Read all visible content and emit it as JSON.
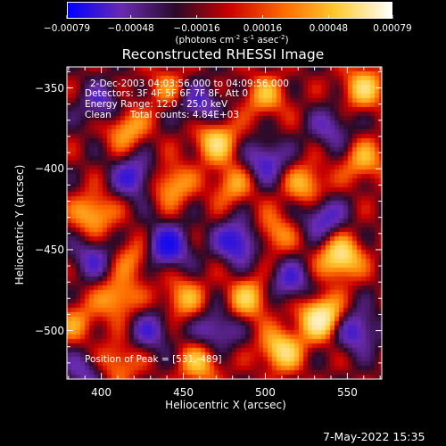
{
  "colorbar": {
    "tick_labels": [
      "-0.00079",
      "-0.00048",
      "-0.00016",
      "0.00016",
      "0.00048",
      "0.00079"
    ],
    "tick_values": [
      -0.00079,
      -0.00048,
      -0.00016,
      0.00016,
      0.00048,
      0.00079
    ],
    "units": {
      "pre": "(photons cm",
      "e1": "-2",
      "mid": " s",
      "e2": "-1",
      "mid2": " asec",
      "e3": "-2",
      "post": ")"
    },
    "colors": [
      "#0000ff",
      "#6a2bb0",
      "#2a0a2a",
      "#cc0000",
      "#ff6a00",
      "#ffcc33",
      "#ffffff"
    ]
  },
  "chart_data": {
    "type": "heatmap",
    "title": "Reconstructed RHESSI Image",
    "xlabel": "Heliocentric X (arcsec)",
    "ylabel": "Heliocentric Y (arcsec)",
    "xlim": [
      379,
      571
    ],
    "ylim": [
      -530,
      -337
    ],
    "x_ticks": [
      400,
      450,
      500,
      550
    ],
    "y_ticks": [
      -350,
      -400,
      -450,
      -500
    ],
    "x_tick_labels": [
      "400",
      "450",
      "500",
      "550"
    ],
    "y_tick_labels": [
      "-350",
      "-400",
      "-450",
      "-500"
    ],
    "vmin": -0.00079,
    "vmax": 0.00079,
    "peak": {
      "x": 531,
      "y": -489
    },
    "blobs": [
      {
        "x": 534,
        "y": -492,
        "v": 1.0
      },
      {
        "x": 546,
        "y": -455,
        "v": 0.85
      },
      {
        "x": 510,
        "y": -512,
        "v": 0.75
      },
      {
        "x": 470,
        "y": -383,
        "v": 0.7
      },
      {
        "x": 415,
        "y": -375,
        "v": 0.55
      },
      {
        "x": 395,
        "y": -428,
        "v": 0.6
      },
      {
        "x": 443,
        "y": -410,
        "v": 0.55
      },
      {
        "x": 480,
        "y": -410,
        "v": 0.45
      },
      {
        "x": 525,
        "y": -410,
        "v": 0.55
      },
      {
        "x": 560,
        "y": -395,
        "v": 0.5
      },
      {
        "x": 560,
        "y": -350,
        "v": 0.65
      },
      {
        "x": 500,
        "y": -355,
        "v": 0.5
      },
      {
        "x": 410,
        "y": -480,
        "v": 0.55
      },
      {
        "x": 450,
        "y": -480,
        "v": 0.5
      },
      {
        "x": 490,
        "y": -480,
        "v": 0.6
      },
      {
        "x": 410,
        "y": -520,
        "v": 0.45
      },
      {
        "x": 460,
        "y": -520,
        "v": 0.55
      },
      {
        "x": 420,
        "y": -455,
        "v": 0.4
      },
      {
        "x": 505,
        "y": -440,
        "v": 0.45
      },
      {
        "x": 385,
        "y": -495,
        "v": 0.4
      },
      {
        "x": 440,
        "y": -350,
        "v": 0.35
      },
      {
        "x": 440,
        "y": -448,
        "v": -0.8
      },
      {
        "x": 483,
        "y": -445,
        "v": -0.75
      },
      {
        "x": 420,
        "y": -405,
        "v": -0.6
      },
      {
        "x": 500,
        "y": -395,
        "v": -0.55
      },
      {
        "x": 535,
        "y": -430,
        "v": -0.55
      },
      {
        "x": 555,
        "y": -500,
        "v": -0.6
      },
      {
        "x": 470,
        "y": -500,
        "v": -0.5
      },
      {
        "x": 395,
        "y": -455,
        "v": -0.45
      },
      {
        "x": 460,
        "y": -360,
        "v": -0.5
      },
      {
        "x": 515,
        "y": -470,
        "v": -0.5
      },
      {
        "x": 400,
        "y": -360,
        "v": -0.45
      },
      {
        "x": 540,
        "y": -375,
        "v": -0.4
      },
      {
        "x": 430,
        "y": -500,
        "v": -0.45
      },
      {
        "x": 390,
        "y": -525,
        "v": -0.4
      }
    ]
  },
  "annotations": {
    "time": "2-Dec-2003 04:03:56.000 to 04:09:56.000",
    "detectors": "Detectors: 3F 4F 5F 6F 7F 8F, Att 0",
    "energy": "Energy Range: 12.0 - 25.0 keV",
    "method": "Clean",
    "counts": "Total counts: 4.84E+03",
    "peak": "Position of Peak = [531,-489]"
  },
  "timestamp": "7-May-2022 15:35"
}
